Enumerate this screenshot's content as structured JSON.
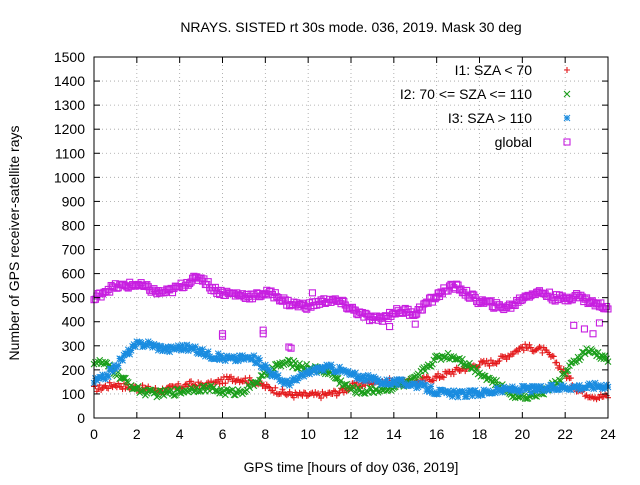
{
  "chart_data": {
    "type": "scatter",
    "title": "NRAYS. SISTED rt 30s mode. 036, 2019. Mask 30 deg",
    "xlabel": "GPS time [hours of doy 036, 2019]",
    "ylabel": "Number of GPS receiver-satellite rays",
    "xlim": [
      0,
      24
    ],
    "ylim": [
      0,
      1500
    ],
    "xticks": [
      0,
      2,
      4,
      6,
      8,
      10,
      12,
      14,
      16,
      18,
      20,
      22,
      24
    ],
    "yticks": [
      0,
      100,
      200,
      300,
      400,
      500,
      600,
      700,
      800,
      900,
      1000,
      1100,
      1200,
      1300,
      1400,
      1500
    ],
    "grid": true,
    "legend_position": "top-right",
    "series": [
      {
        "name": "I1: SZA < 70",
        "marker": "plus",
        "color": "#e41a1c",
        "x": [
          0,
          0.5,
          1,
          1.5,
          2,
          2.5,
          3,
          3.5,
          4,
          4.5,
          5,
          5.5,
          6,
          6.5,
          7,
          7.5,
          8,
          8.5,
          9,
          9.5,
          10,
          10.5,
          11,
          11.5,
          12,
          12.5,
          13,
          13.5,
          14,
          14.5,
          15,
          15.5,
          16,
          16.5,
          17,
          17.5,
          18,
          18.5,
          19,
          19.5,
          20,
          20.5,
          21,
          21.5,
          22,
          22.5,
          23,
          23.5,
          24
        ],
        "y": [
          120,
          130,
          140,
          130,
          125,
          120,
          115,
          120,
          130,
          140,
          135,
          140,
          155,
          165,
          160,
          150,
          130,
          115,
          100,
          95,
          95,
          95,
          100,
          110,
          130,
          140,
          150,
          155,
          150,
          145,
          150,
          160,
          170,
          185,
          200,
          210,
          225,
          230,
          245,
          270,
          295,
          290,
          280,
          240,
          185,
          125,
          100,
          90,
          90
        ]
      },
      {
        "name": "I2: 70 <= SZA <= 110",
        "marker": "cross",
        "color": "#1a9e1a",
        "x": [
          0,
          0.5,
          1,
          1.5,
          2,
          2.5,
          3,
          3.5,
          4,
          4.5,
          5,
          5.5,
          6,
          6.5,
          7,
          7.5,
          8,
          8.5,
          9,
          9.5,
          10,
          10.5,
          11,
          11.5,
          12,
          12.5,
          13,
          13.5,
          14,
          14.5,
          15,
          15.5,
          16,
          16.5,
          17,
          17.5,
          18,
          18.5,
          19,
          19.5,
          20,
          20.5,
          21,
          21.5,
          22,
          22.5,
          23,
          23.5,
          24
        ],
        "y": [
          235,
          225,
          190,
          150,
          120,
          105,
          100,
          105,
          110,
          120,
          125,
          120,
          110,
          105,
          115,
          145,
          180,
          215,
          230,
          220,
          210,
          200,
          190,
          150,
          120,
          110,
          115,
          120,
          130,
          140,
          160,
          210,
          250,
          260,
          250,
          220,
          190,
          160,
          130,
          100,
          90,
          95,
          110,
          140,
          185,
          240,
          280,
          265,
          240
        ]
      },
      {
        "name": "I3: SZA > 110",
        "marker": "star",
        "color": "#1a8ce0",
        "x": [
          0,
          0.5,
          1,
          1.5,
          2,
          2.5,
          3,
          3.5,
          4,
          4.5,
          5,
          5.5,
          6,
          6.5,
          7,
          7.5,
          8,
          8.5,
          9,
          9.5,
          10,
          10.5,
          11,
          11.5,
          12,
          12.5,
          13,
          13.5,
          14,
          14.5,
          15,
          15.5,
          16,
          16.5,
          17,
          17.5,
          18,
          18.5,
          19,
          19.5,
          20,
          20.5,
          21,
          21.5,
          22,
          22.5,
          23,
          23.5,
          24
        ],
        "y": [
          150,
          170,
          215,
          265,
          305,
          310,
          295,
          285,
          295,
          290,
          275,
          260,
          250,
          245,
          250,
          245,
          215,
          170,
          145,
          160,
          190,
          205,
          210,
          200,
          180,
          170,
          160,
          150,
          150,
          145,
          140,
          125,
          110,
          100,
          100,
          100,
          105,
          110,
          115,
          120,
          120,
          120,
          120,
          125,
          130,
          130,
          130,
          135,
          135
        ]
      },
      {
        "name": "global",
        "marker": "square",
        "color": "#c71ee0",
        "x": [
          0,
          0.5,
          1,
          1.5,
          2,
          2.5,
          3,
          3.5,
          4,
          4.5,
          5,
          5.5,
          6,
          6.5,
          7,
          7.5,
          8,
          8.5,
          9,
          9.5,
          10,
          10.5,
          11,
          11.5,
          12,
          12.5,
          13,
          13.5,
          14,
          14.5,
          15,
          15.5,
          16,
          16.5,
          17,
          17.5,
          18,
          18.5,
          19,
          19.5,
          20,
          20.5,
          21,
          21.5,
          22,
          22.5,
          23,
          23.5,
          24
        ],
        "y": [
          490,
          530,
          545,
          550,
          555,
          540,
          520,
          525,
          545,
          570,
          585,
          540,
          520,
          515,
          510,
          505,
          520,
          510,
          480,
          470,
          465,
          480,
          490,
          480,
          455,
          430,
          410,
          415,
          440,
          445,
          435,
          475,
          505,
          540,
          545,
          510,
          485,
          475,
          460,
          465,
          500,
          520,
          520,
          500,
          495,
          510,
          490,
          470,
          460
        ],
        "outliers_x": [
          6.0,
          6.0,
          7.9,
          7.9,
          9.1,
          9.2,
          10.2,
          13.8,
          15.0,
          16.1,
          22.4,
          22.9,
          23.3,
          23.6
        ],
        "outliers_y": [
          340,
          350,
          350,
          365,
          295,
          290,
          520,
          380,
          390,
          520,
          385,
          370,
          350,
          395
        ]
      }
    ]
  }
}
